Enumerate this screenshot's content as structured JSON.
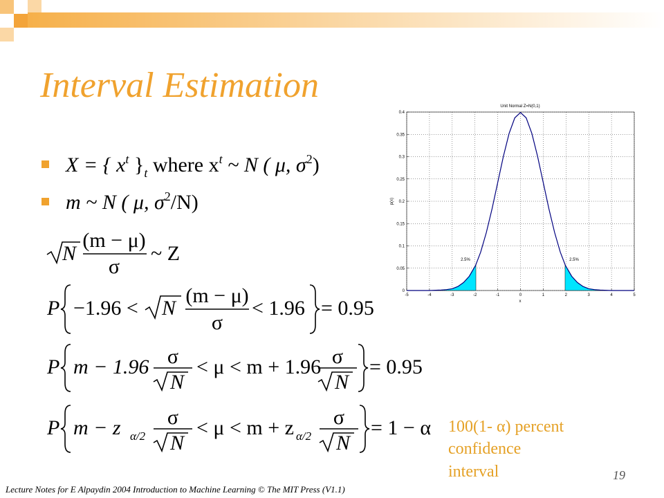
{
  "title": "Interval Estimation",
  "bullets": [
    [
      "X = { x",
      "t",
      " }",
      "t",
      " where x",
      "t",
      " ~ N ( μ, σ",
      "2",
      ")"
    ],
    [
      "m ~ N ( μ, σ",
      "2",
      "/N)"
    ]
  ],
  "equations": [
    [
      "N",
      "(m − μ)",
      "σ",
      "~ Z"
    ],
    [
      "P",
      "−1.96 <",
      "N",
      "(m − μ)",
      "σ",
      "< 1.96",
      "= 0.95"
    ],
    [
      "P",
      "m − 1.96",
      "σ",
      "N",
      "< μ < m + 1.96",
      "σ",
      "N",
      "= 0.95"
    ],
    [
      "P",
      "m − z",
      "α/2",
      "σ",
      "N",
      "< μ < m + z",
      "α/2",
      "σ",
      "N",
      "= 1 − α"
    ]
  ],
  "side_note": [
    "100(1- α) percent",
    "confidence",
    "interval"
  ],
  "footer": "Lecture Notes for E Alpaydin 2004 Introduction to Machine Learning © The MIT Press (V1.1)",
  "page_number": "19",
  "chart_data": {
    "type": "line",
    "title": "Unit Normal Z=N(0,1)",
    "x_label": "x",
    "y_label": "p(x)",
    "x": [
      -5,
      -4.5,
      -4,
      -3.5,
      -3.25,
      -3,
      -2.75,
      -2.5,
      -2.25,
      -2,
      -1.96,
      -1.75,
      -1.5,
      -1.25,
      -1,
      -0.75,
      -0.5,
      -0.25,
      0,
      0.25,
      0.5,
      0.75,
      1,
      1.25,
      1.5,
      1.75,
      1.96,
      2,
      2.25,
      2.5,
      2.75,
      3,
      3.25,
      3.5,
      4,
      4.5,
      5
    ],
    "y": [
      0,
      0,
      0,
      0.001,
      0.002,
      0.004,
      0.009,
      0.018,
      0.032,
      0.054,
      0.058,
      0.086,
      0.13,
      0.183,
      0.242,
      0.301,
      0.352,
      0.387,
      0.399,
      0.387,
      0.352,
      0.301,
      0.242,
      0.183,
      0.13,
      0.086,
      0.058,
      0.054,
      0.032,
      0.018,
      0.009,
      0.004,
      0.002,
      0.001,
      0,
      0,
      0
    ],
    "color": "#00007f",
    "shade_color": "#00e5ff",
    "shaded_x": [
      [
        -5,
        -1.96
      ],
      [
        1.96,
        5
      ]
    ],
    "annotations": [
      "2.5%",
      "2.5%"
    ],
    "xlim": [
      -5,
      5
    ],
    "ylim": [
      0,
      0.4
    ],
    "xticks": [
      -5,
      -4,
      -3,
      -2,
      -1,
      0,
      1,
      2,
      3,
      4,
      5
    ],
    "yticks": [
      0,
      0.05,
      0.1,
      0.15,
      0.2,
      0.25,
      0.3,
      0.35,
      0.4
    ],
    "grid": true
  }
}
